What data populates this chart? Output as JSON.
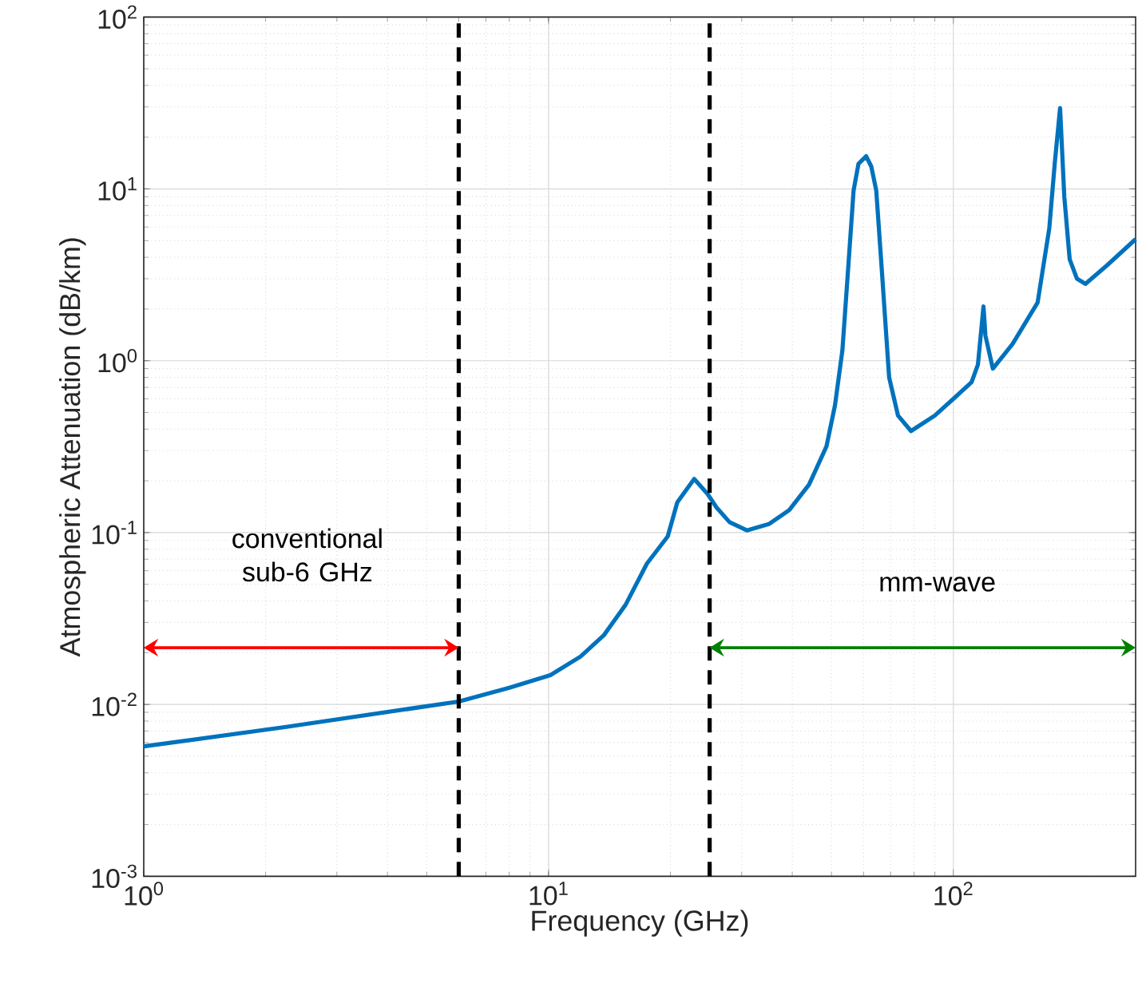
{
  "chart_data": {
    "type": "line",
    "xlabel": "Frequency (GHz)",
    "ylabel": "Atmospheric Attenuation (dB/km)",
    "log": "xy",
    "grid": true,
    "marker": "none",
    "line_style": "solid",
    "xlim": [
      1,
      282
    ],
    "ylim": [
      0.001,
      100
    ],
    "xticks": [
      {
        "value": 1,
        "label": "10$^{0}$"
      },
      {
        "value": 10,
        "label": "10$^{1}$"
      },
      {
        "value": 100,
        "label": "10$^{2}$"
      }
    ],
    "yticks": [
      {
        "value": 0.001,
        "label": "10$^{-3}$"
      },
      {
        "value": 0.01,
        "label": "10$^{-2}$"
      },
      {
        "value": 0.1,
        "label": "10$^{-1}$"
      },
      {
        "value": 1,
        "label": "10$^{0}$"
      },
      {
        "value": 10,
        "label": "10$^{1}$"
      },
      {
        "value": 100,
        "label": "10$^{2}$"
      }
    ],
    "ref_lines": [
      {
        "axis": "x",
        "value": 6,
        "color": "#000000",
        "line_style": "dashed"
      },
      {
        "axis": "x",
        "value": 25,
        "color": "#000000",
        "line_style": "dashed"
      }
    ],
    "annotations": [
      "conventional sub-6 GHz",
      "mm-wave"
    ],
    "series": [
      {
        "color": "#0072bd",
        "x": [
          1,
          2.25,
          6.0,
          8,
          10.1,
          12,
          13.7,
          15.5,
          17.5,
          19.7,
          20.8,
          22.9,
          24.7,
          26,
          28,
          30.9,
          35,
          39.3,
          44,
          48.6,
          51,
          53.2,
          55,
          56.7,
          58.3,
          60.9,
          62.7,
          64.5,
          66.5,
          69.4,
          73,
          78.6,
          90,
          100,
          110.9,
          115,
          118.7,
          120,
          125.2,
          140,
          161.5,
          172.6,
          178,
          183.5,
          188,
          193.8,
          202,
          212,
          240,
          282
        ],
        "values": [
          0.0057,
          0.0074,
          0.0104,
          0.0125,
          0.0148,
          0.019,
          0.0253,
          0.038,
          0.066,
          0.095,
          0.15,
          0.205,
          0.168,
          0.14,
          0.115,
          0.103,
          0.112,
          0.135,
          0.19,
          0.318,
          0.55,
          1.15,
          3.5,
          9.8,
          14,
          15.5,
          13.5,
          9.8,
          3.5,
          0.8,
          0.48,
          0.39,
          0.48,
          0.6,
          0.75,
          0.95,
          2.07,
          1.4,
          0.9,
          1.25,
          2.18,
          5.9,
          14,
          29.5,
          9,
          3.9,
          3.0,
          2.8,
          3.6,
          5.1
        ]
      }
    ]
  }
}
